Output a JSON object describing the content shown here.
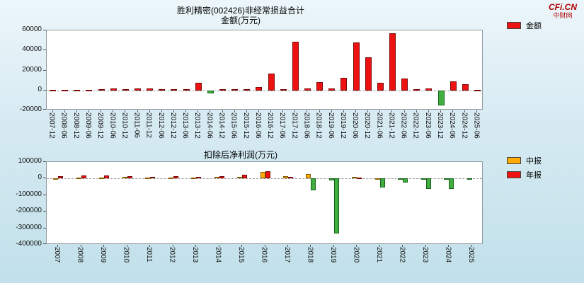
{
  "logo": {
    "brand": "CFi.CN",
    "sub": "中财网"
  },
  "chart_data": [
    {
      "type": "bar",
      "title": "胜利精密(002426)非经常损益合计",
      "subtitle": "金额(万元)",
      "legend": [
        {
          "label": "金额",
          "color": "#ee1111"
        }
      ],
      "negative_color": "#3fae3f",
      "ylim": [
        -20000,
        60000
      ],
      "yticks": [
        60000,
        40000,
        20000,
        0,
        -20000
      ],
      "grid": "zero-dashed",
      "legend_position": "top-right-outside",
      "categories": [
        "2007-12",
        "2008-06",
        "2008-12",
        "2009-06",
        "2009-12",
        "2010-06",
        "2010-12",
        "2011-06",
        "2011-12",
        "2012-06",
        "2012-12",
        "2013-06",
        "2013-12",
        "2014-06",
        "2014-12",
        "2015-06",
        "2015-12",
        "2016-06",
        "2016-12",
        "2017-06",
        "2017-12",
        "2018-06",
        "2018-12",
        "2019-06",
        "2019-12",
        "2020-06",
        "2020-12",
        "2021-06",
        "2021-12",
        "2022-06",
        "2022-12",
        "2023-06",
        "2023-12",
        "2024-06",
        "2024-12",
        "2025-06"
      ],
      "series": [
        {
          "name": "金额",
          "color": "#ee1111",
          "values": [
            800,
            500,
            700,
            500,
            1400,
            2200,
            1000,
            1800,
            2100,
            1000,
            1400,
            1500,
            7300,
            -2900,
            1400,
            1000,
            1300,
            3200,
            16500,
            1500,
            49000,
            2200,
            8600,
            2000,
            12800,
            48000,
            33000,
            8000,
            57000,
            12000,
            1300,
            2200,
            -15000,
            9200,
            6500,
            300
          ]
        }
      ]
    },
    {
      "type": "bar",
      "title": "扣除后净利润(万元)",
      "legend": [
        {
          "label": "中报",
          "color": "#ffaa00"
        },
        {
          "label": "年报",
          "color": "#ee1111"
        }
      ],
      "negative_color": "#3fae3f",
      "ylim": [
        -400000,
        100000
      ],
      "yticks": [
        100000,
        0,
        -100000,
        -200000,
        -300000,
        -400000
      ],
      "grid": "zero-dashed",
      "legend_position": "top-right-outside",
      "categories": [
        "2007",
        "2008",
        "2009",
        "2010",
        "2011",
        "2012",
        "2013",
        "2014",
        "2015",
        "2016",
        "2017",
        "2018",
        "2019",
        "2020",
        "2021",
        "2022",
        "2023",
        "2024",
        "2025"
      ],
      "series": [
        {
          "name": "中报",
          "color": "#ffaa00",
          "values": [
            4000,
            8000,
            8000,
            9000,
            8000,
            8000,
            8000,
            9000,
            12000,
            42000,
            13000,
            26000,
            -13000,
            10000,
            4000,
            -5000,
            -6000,
            -9000,
            -4000
          ]
        },
        {
          "name": "年报",
          "color": "#ee1111",
          "values": [
            15000,
            17000,
            17000,
            15000,
            12000,
            15000,
            12000,
            13000,
            25000,
            43000,
            9000,
            -72000,
            -330000,
            5000,
            -55000,
            -26000,
            -64000,
            -63000,
            null
          ]
        }
      ]
    }
  ]
}
